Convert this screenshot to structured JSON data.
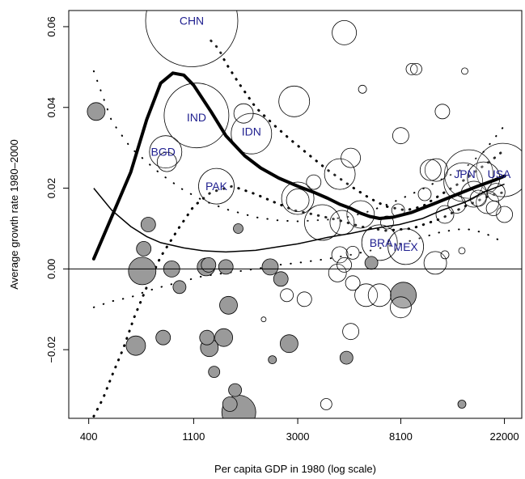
{
  "chart_data": {
    "type": "scatter",
    "title": "",
    "xlabel": "Per capita GDP in 1980 (log scale)",
    "ylabel": "Average growth rate 1980–2000",
    "xscale": "log",
    "xlim": [
      330,
      26000
    ],
    "ylim": [
      -0.037,
      0.064
    ],
    "xticks": [
      400,
      1100,
      3000,
      8100,
      22000
    ],
    "xtick_labels": [
      "400",
      "1100",
      "3000",
      "8100",
      "22000"
    ],
    "yticks": [
      -0.02,
      0.0,
      0.02,
      0.04,
      0.06
    ],
    "ytick_labels": [
      "−0.02",
      "0.00",
      "0.02",
      "0.04",
      "0.06"
    ],
    "grid": false,
    "reference_line_y": 0.0,
    "points": [
      {
        "x": 430,
        "y": 0.039,
        "r": 11,
        "fill": "gray"
      },
      {
        "x": 710,
        "y": 0.011,
        "r": 9,
        "fill": "gray"
      },
      {
        "x": 680,
        "y": 0.005,
        "r": 9,
        "fill": "gray"
      },
      {
        "x": 670,
        "y": -0.0005,
        "r": 17,
        "fill": "gray"
      },
      {
        "x": 890,
        "y": 0.0,
        "r": 10,
        "fill": "gray"
      },
      {
        "x": 1240,
        "y": 0.0005,
        "r": 11,
        "fill": "gray"
      },
      {
        "x": 1270,
        "y": 0.001,
        "r": 9,
        "fill": "gray"
      },
      {
        "x": 1500,
        "y": 0.0005,
        "r": 9,
        "fill": "gray"
      },
      {
        "x": 2300,
        "y": 0.0005,
        "r": 10,
        "fill": "gray"
      },
      {
        "x": 2550,
        "y": -0.0025,
        "r": 9,
        "fill": "gray"
      },
      {
        "x": 960,
        "y": -0.0045,
        "r": 8,
        "fill": "gray"
      },
      {
        "x": 1540,
        "y": -0.009,
        "r": 11,
        "fill": "gray"
      },
      {
        "x": 820,
        "y": -0.017,
        "r": 9,
        "fill": "gray"
      },
      {
        "x": 1250,
        "y": -0.017,
        "r": 9,
        "fill": "gray"
      },
      {
        "x": 1470,
        "y": -0.017,
        "r": 11,
        "fill": "gray"
      },
      {
        "x": 630,
        "y": -0.019,
        "r": 12,
        "fill": "gray"
      },
      {
        "x": 1280,
        "y": -0.0195,
        "r": 11,
        "fill": "gray"
      },
      {
        "x": 1340,
        "y": -0.0255,
        "r": 7,
        "fill": "gray"
      },
      {
        "x": 2760,
        "y": -0.0185,
        "r": 11,
        "fill": "gray"
      },
      {
        "x": 2350,
        "y": -0.0225,
        "r": 5,
        "fill": "gray"
      },
      {
        "x": 1640,
        "y": -0.03,
        "r": 8,
        "fill": "gray"
      },
      {
        "x": 1560,
        "y": -0.0335,
        "r": 9,
        "fill": "gray"
      },
      {
        "x": 1700,
        "y": -0.0355,
        "r": 21,
        "fill": "gray"
      },
      {
        "x": 4800,
        "y": -0.022,
        "r": 8,
        "fill": "gray"
      },
      {
        "x": 8300,
        "y": -0.0065,
        "r": 16,
        "fill": "gray"
      },
      {
        "x": 14600,
        "y": -0.0335,
        "r": 5,
        "fill": "gray"
      },
      {
        "x": 6100,
        "y": 0.0015,
        "r": 8,
        "fill": "gray"
      },
      {
        "x": 1690,
        "y": 0.01,
        "r": 6,
        "fill": "gray"
      },
      {
        "x": 1080,
        "y": 0.0615,
        "r": 57,
        "fill": "white"
      },
      {
        "x": 1130,
        "y": 0.038,
        "r": 40,
        "fill": "white"
      },
      {
        "x": 1920,
        "y": 0.0335,
        "r": 25,
        "fill": "white"
      },
      {
        "x": 1780,
        "y": 0.0385,
        "r": 12,
        "fill": "white"
      },
      {
        "x": 840,
        "y": 0.029,
        "r": 20,
        "fill": "white"
      },
      {
        "x": 850,
        "y": 0.0265,
        "r": 12,
        "fill": "white"
      },
      {
        "x": 1370,
        "y": 0.0205,
        "r": 22,
        "fill": "white"
      },
      {
        "x": 2900,
        "y": 0.0415,
        "r": 19,
        "fill": "white"
      },
      {
        "x": 4700,
        "y": 0.0585,
        "r": 15,
        "fill": "white"
      },
      {
        "x": 3000,
        "y": 0.0175,
        "r": 20,
        "fill": "white"
      },
      {
        "x": 3000,
        "y": 0.017,
        "r": 14,
        "fill": "white"
      },
      {
        "x": 3500,
        "y": 0.0215,
        "r": 9,
        "fill": "white"
      },
      {
        "x": 4500,
        "y": 0.0235,
        "r": 19,
        "fill": "white"
      },
      {
        "x": 5000,
        "y": 0.0275,
        "r": 12,
        "fill": "white"
      },
      {
        "x": 5600,
        "y": 0.0445,
        "r": 5,
        "fill": "white"
      },
      {
        "x": 3800,
        "y": 0.0115,
        "r": 22,
        "fill": "white"
      },
      {
        "x": 4600,
        "y": 0.0115,
        "r": 15,
        "fill": "white"
      },
      {
        "x": 5500,
        "y": 0.0135,
        "r": 17,
        "fill": "white"
      },
      {
        "x": 6600,
        "y": 0.0065,
        "r": 22,
        "fill": "white"
      },
      {
        "x": 8500,
        "y": 0.0055,
        "r": 22,
        "fill": "white"
      },
      {
        "x": 5100,
        "y": 0.004,
        "r": 8,
        "fill": "white"
      },
      {
        "x": 4500,
        "y": 0.0035,
        "r": 10,
        "fill": "white"
      },
      {
        "x": 4700,
        "y": 0.001,
        "r": 9,
        "fill": "white"
      },
      {
        "x": 4400,
        "y": -0.001,
        "r": 11,
        "fill": "white"
      },
      {
        "x": 5100,
        "y": -0.0035,
        "r": 9,
        "fill": "white"
      },
      {
        "x": 5800,
        "y": -0.0065,
        "r": 14,
        "fill": "white"
      },
      {
        "x": 6600,
        "y": -0.0065,
        "r": 14,
        "fill": "white"
      },
      {
        "x": 8100,
        "y": -0.0095,
        "r": 13,
        "fill": "white"
      },
      {
        "x": 3200,
        "y": -0.0075,
        "r": 9,
        "fill": "white"
      },
      {
        "x": 3950,
        "y": -0.0335,
        "r": 7,
        "fill": "white"
      },
      {
        "x": 5000,
        "y": -0.0155,
        "r": 10,
        "fill": "white"
      },
      {
        "x": 2700,
        "y": -0.0065,
        "r": 8,
        "fill": "white"
      },
      {
        "x": 2160,
        "y": -0.0125,
        "r": 3,
        "fill": "white"
      },
      {
        "x": 8100,
        "y": 0.033,
        "r": 10,
        "fill": "white"
      },
      {
        "x": 9000,
        "y": 0.0495,
        "r": 7,
        "fill": "white"
      },
      {
        "x": 9400,
        "y": 0.0495,
        "r": 7,
        "fill": "white"
      },
      {
        "x": 12100,
        "y": 0.039,
        "r": 9,
        "fill": "white"
      },
      {
        "x": 10800,
        "y": 0.0245,
        "r": 13,
        "fill": "white"
      },
      {
        "x": 11400,
        "y": 0.0245,
        "r": 14,
        "fill": "white"
      },
      {
        "x": 15600,
        "y": 0.0235,
        "r": 30,
        "fill": "white"
      },
      {
        "x": 14800,
        "y": 0.0215,
        "r": 24,
        "fill": "white"
      },
      {
        "x": 18000,
        "y": 0.0225,
        "r": 20,
        "fill": "white"
      },
      {
        "x": 21700,
        "y": 0.0245,
        "r": 33,
        "fill": "white"
      },
      {
        "x": 16400,
        "y": 0.0185,
        "r": 16,
        "fill": "white"
      },
      {
        "x": 18700,
        "y": 0.0165,
        "r": 14,
        "fill": "white"
      },
      {
        "x": 13900,
        "y": 0.016,
        "r": 11,
        "fill": "white"
      },
      {
        "x": 17100,
        "y": 0.0175,
        "r": 10,
        "fill": "white"
      },
      {
        "x": 20300,
        "y": 0.019,
        "r": 11,
        "fill": "white"
      },
      {
        "x": 22000,
        "y": 0.0135,
        "r": 10,
        "fill": "white"
      },
      {
        "x": 19800,
        "y": 0.015,
        "r": 9,
        "fill": "white"
      },
      {
        "x": 12400,
        "y": 0.0135,
        "r": 11,
        "fill": "white"
      },
      {
        "x": 11300,
        "y": 0.0015,
        "r": 14,
        "fill": "white"
      },
      {
        "x": 7100,
        "y": 0.0115,
        "r": 8,
        "fill": "white"
      },
      {
        "x": 10200,
        "y": 0.0185,
        "r": 8,
        "fill": "white"
      },
      {
        "x": 7900,
        "y": 0.0145,
        "r": 8,
        "fill": "white"
      },
      {
        "x": 12400,
        "y": 0.0035,
        "r": 5,
        "fill": "white"
      },
      {
        "x": 14600,
        "y": 0.0045,
        "r": 4,
        "fill": "white"
      },
      {
        "x": 15000,
        "y": 0.049,
        "r": 4,
        "fill": "white"
      }
    ],
    "country_labels": [
      {
        "text": "CHN",
        "x": 1080,
        "y": 0.0615
      },
      {
        "text": "IND",
        "x": 1130,
        "y": 0.0375
      },
      {
        "text": "IDN",
        "x": 1920,
        "y": 0.034
      },
      {
        "text": "BGD",
        "x": 820,
        "y": 0.029
      },
      {
        "text": "PAK",
        "x": 1370,
        "y": 0.0205
      },
      {
        "text": "BRA",
        "x": 6700,
        "y": 0.0065
      },
      {
        "text": "MEX",
        "x": 8500,
        "y": 0.0055
      },
      {
        "text": "JPN",
        "x": 15000,
        "y": 0.0235
      },
      {
        "text": "USA",
        "x": 20900,
        "y": 0.0235
      }
    ],
    "series": [
      {
        "style": "thick",
        "x": [
          420,
          500,
          600,
          700,
          800,
          900,
          1000,
          1100,
          1300,
          1500,
          1800,
          2100,
          2500,
          3000,
          3500,
          4000,
          4500,
          5000,
          5500,
          6000,
          6600,
          7500,
          9000,
          11000,
          14000,
          17000,
          20000,
          22000
        ],
        "y": [
          0.0025,
          0.013,
          0.024,
          0.037,
          0.046,
          0.0485,
          0.048,
          0.0455,
          0.039,
          0.033,
          0.028,
          0.025,
          0.0225,
          0.0205,
          0.019,
          0.0175,
          0.016,
          0.015,
          0.0138,
          0.013,
          0.0125,
          0.0128,
          0.014,
          0.016,
          0.0185,
          0.0205,
          0.022,
          0.023
        ]
      },
      {
        "style": "thin",
        "x": [
          420,
          500,
          600,
          700,
          800,
          1000,
          1200,
          1500,
          2000,
          2500,
          3000,
          4000,
          5000,
          6000,
          7000,
          8000,
          10000,
          12000,
          15000,
          18000,
          22000
        ],
        "y": [
          0.02,
          0.0145,
          0.0105,
          0.008,
          0.0065,
          0.0052,
          0.0045,
          0.0042,
          0.0046,
          0.0055,
          0.0062,
          0.0078,
          0.0088,
          0.0098,
          0.0105,
          0.011,
          0.0125,
          0.0145,
          0.0165,
          0.019,
          0.021
        ]
      },
      {
        "style": "dotted-band-upper",
        "x": [
          420,
          500,
          600,
          700,
          800,
          1000,
          1200,
          1500,
          2000,
          2500,
          3000,
          4000,
          5000,
          6000,
          7000,
          8000,
          10000,
          12000,
          15000,
          18000,
          22000
        ],
        "y": [
          0.049,
          0.0365,
          0.03,
          0.0265,
          0.0235,
          0.0195,
          0.017,
          0.0148,
          0.0128,
          0.012,
          0.0118,
          0.0122,
          0.013,
          0.0143,
          0.0158,
          0.0172,
          0.0198,
          0.0222,
          0.025,
          0.029,
          0.0355
        ]
      },
      {
        "style": "dotted-band-lower",
        "x": [
          420,
          500,
          600,
          700,
          800,
          1000,
          1200,
          1500,
          2000,
          2500,
          3000,
          4000,
          5000,
          6000,
          7000,
          8000,
          10000,
          12000,
          15000,
          18000,
          22000
        ],
        "y": [
          -0.0095,
          -0.008,
          -0.007,
          -0.0055,
          -0.0045,
          -0.003,
          -0.0018,
          -0.001,
          0.0,
          0.001,
          0.0015,
          0.0025,
          0.0035,
          0.0045,
          0.0055,
          0.0062,
          0.0078,
          0.0092,
          0.01,
          0.009,
          0.0065
        ]
      },
      {
        "style": "dotted-band-thick-upper",
        "x": [
          1300,
          1400,
          1500,
          1700,
          2000,
          2400,
          2800,
          3300,
          4000,
          5000,
          6000,
          7000,
          8500,
          10000,
          12000,
          14500,
          17000,
          20000,
          22000
        ],
        "y": [
          0.0565,
          0.0545,
          0.051,
          0.046,
          0.04,
          0.0355,
          0.032,
          0.0285,
          0.0245,
          0.0205,
          0.0175,
          0.0155,
          0.0145,
          0.0155,
          0.0185,
          0.0215,
          0.0245,
          0.0275,
          0.0295
        ]
      },
      {
        "style": "dotted-band-thick-lower",
        "x": [
          420,
          460,
          500,
          560,
          620,
          700,
          800,
          950,
          1100,
          1300,
          1600,
          2000,
          2400,
          2900,
          3500,
          4500,
          5500,
          7000,
          9000,
          12000,
          15000,
          18000,
          20000,
          22000
        ],
        "y": [
          -0.0365,
          -0.032,
          -0.0265,
          -0.0195,
          -0.012,
          -0.0045,
          0.003,
          0.01,
          0.0155,
          0.019,
          0.0205,
          0.0185,
          0.0165,
          0.0145,
          0.0135,
          0.012,
          0.0105,
          0.0095,
          0.01,
          0.0125,
          0.0155,
          0.0175,
          0.0185,
          0.019
        ]
      }
    ]
  }
}
